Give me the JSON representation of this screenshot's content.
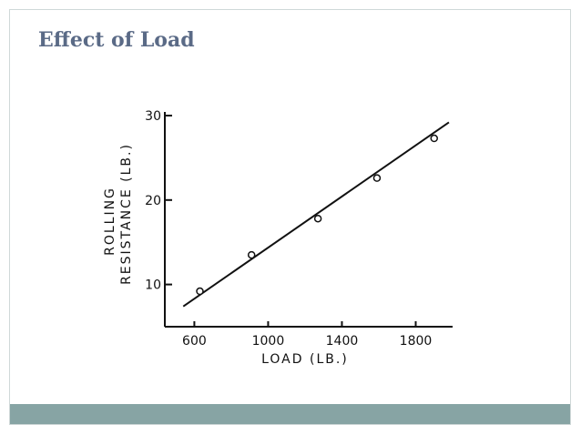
{
  "slide": {
    "title": "Effect of Load",
    "footer_color": "#87a4a4",
    "title_color": "#5a6a86"
  },
  "chart_data": {
    "type": "scatter",
    "title": "",
    "xlabel": "LOAD (LB.)",
    "ylabel_line1": "ROLLING",
    "ylabel_line2": "RESISTANCE (LB.)",
    "xlim": [
      440,
      2000
    ],
    "ylim": [
      5,
      30
    ],
    "x_ticks": [
      600,
      1000,
      1400,
      1800
    ],
    "x_tick_labels": [
      "600",
      "1000",
      "1400",
      "1800"
    ],
    "y_ticks": [
      10,
      20,
      30
    ],
    "y_tick_labels": [
      "10",
      "20",
      "30"
    ],
    "points": [
      {
        "x": 630,
        "y": 9.2
      },
      {
        "x": 910,
        "y": 13.5
      },
      {
        "x": 1270,
        "y": 17.8
      },
      {
        "x": 1590,
        "y": 22.6
      },
      {
        "x": 1900,
        "y": 27.3
      }
    ],
    "fit_line": [
      {
        "x": 540,
        "y": 7.4
      },
      {
        "x": 1980,
        "y": 29.2
      }
    ],
    "grid": false
  }
}
